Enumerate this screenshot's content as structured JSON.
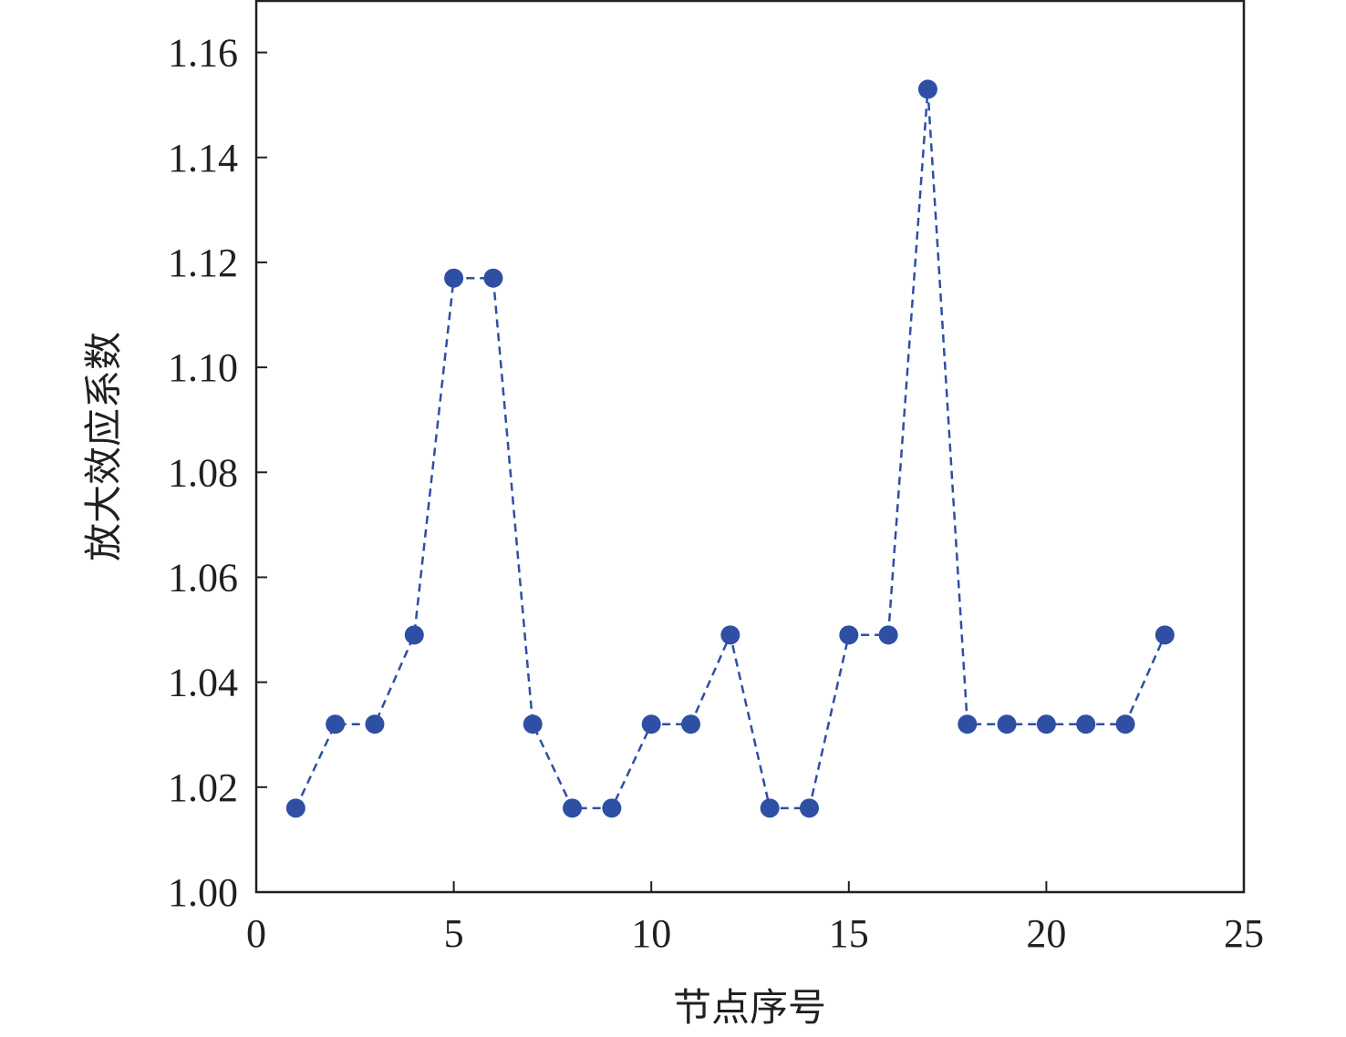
{
  "chart_data": {
    "type": "line",
    "title": "",
    "xlabel": "节点序号",
    "ylabel": "放大效应系数",
    "xlim": [
      0,
      25
    ],
    "ylim": [
      1.0,
      1.17
    ],
    "xticks": [
      0,
      5,
      10,
      15,
      20,
      25
    ],
    "xtick_labels": [
      "0",
      "5",
      "10",
      "15",
      "20",
      "25"
    ],
    "yticks": [
      1.0,
      1.02,
      1.04,
      1.06,
      1.08,
      1.1,
      1.12,
      1.14,
      1.16
    ],
    "ytick_labels": [
      "1.00",
      "1.02",
      "1.04",
      "1.06",
      "1.08",
      "1.10",
      "1.12",
      "1.14",
      "1.16"
    ],
    "grid": false,
    "series": [
      {
        "line_style": "dashed",
        "marker": "circle",
        "color": "#2e4fa3",
        "x": [
          1,
          2,
          3,
          4,
          5,
          6,
          7,
          8,
          9,
          10,
          11,
          12,
          13,
          14,
          15,
          16,
          17,
          18,
          19,
          20,
          21,
          22,
          23
        ],
        "y": [
          1.016,
          1.032,
          1.032,
          1.049,
          1.117,
          1.117,
          1.032,
          1.016,
          1.016,
          1.032,
          1.032,
          1.049,
          1.016,
          1.016,
          1.049,
          1.049,
          1.153,
          1.032,
          1.032,
          1.032,
          1.032,
          1.032,
          1.049
        ]
      }
    ]
  }
}
